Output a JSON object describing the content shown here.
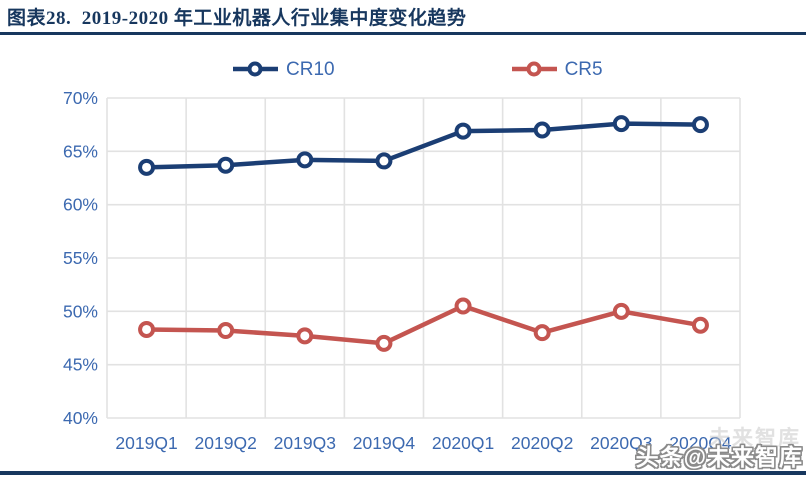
{
  "header": {
    "title": "图表28.  2019-2020 年工业机器人行业集中度变化趋势"
  },
  "chart_data": {
    "type": "line",
    "title": "2019-2020 年工业机器人行业集中度变化趋势",
    "categories": [
      "2019Q1",
      "2019Q2",
      "2019Q3",
      "2019Q4",
      "2020Q1",
      "2020Q2",
      "2020Q3",
      "2020Q4"
    ],
    "series": [
      {
        "name": "CR10",
        "color": "#1b3e74",
        "values": [
          63.5,
          63.7,
          64.2,
          64.1,
          66.9,
          67.0,
          67.6,
          67.5
        ]
      },
      {
        "name": "CR5",
        "color": "#c45550",
        "values": [
          48.3,
          48.2,
          47.7,
          47.0,
          50.5,
          48.0,
          50.0,
          48.7
        ]
      }
    ],
    "ylim": [
      40,
      70
    ],
    "ytick_step": 5,
    "yticks": [
      "70%",
      "65%",
      "60%",
      "55%",
      "50%",
      "45%",
      "40%"
    ],
    "unit": "%",
    "grid": true,
    "legend_position": "top",
    "marker": "open-circle"
  },
  "watermark": {
    "text": "头条@未来智库",
    "ghost_text": "未来智库"
  },
  "colors": {
    "accent_navy": "#17375e",
    "axis_text_blue": "#3c69b0",
    "gridline": "#e2e2e2",
    "cr10": "#1b3e74",
    "cr5": "#c45550"
  }
}
